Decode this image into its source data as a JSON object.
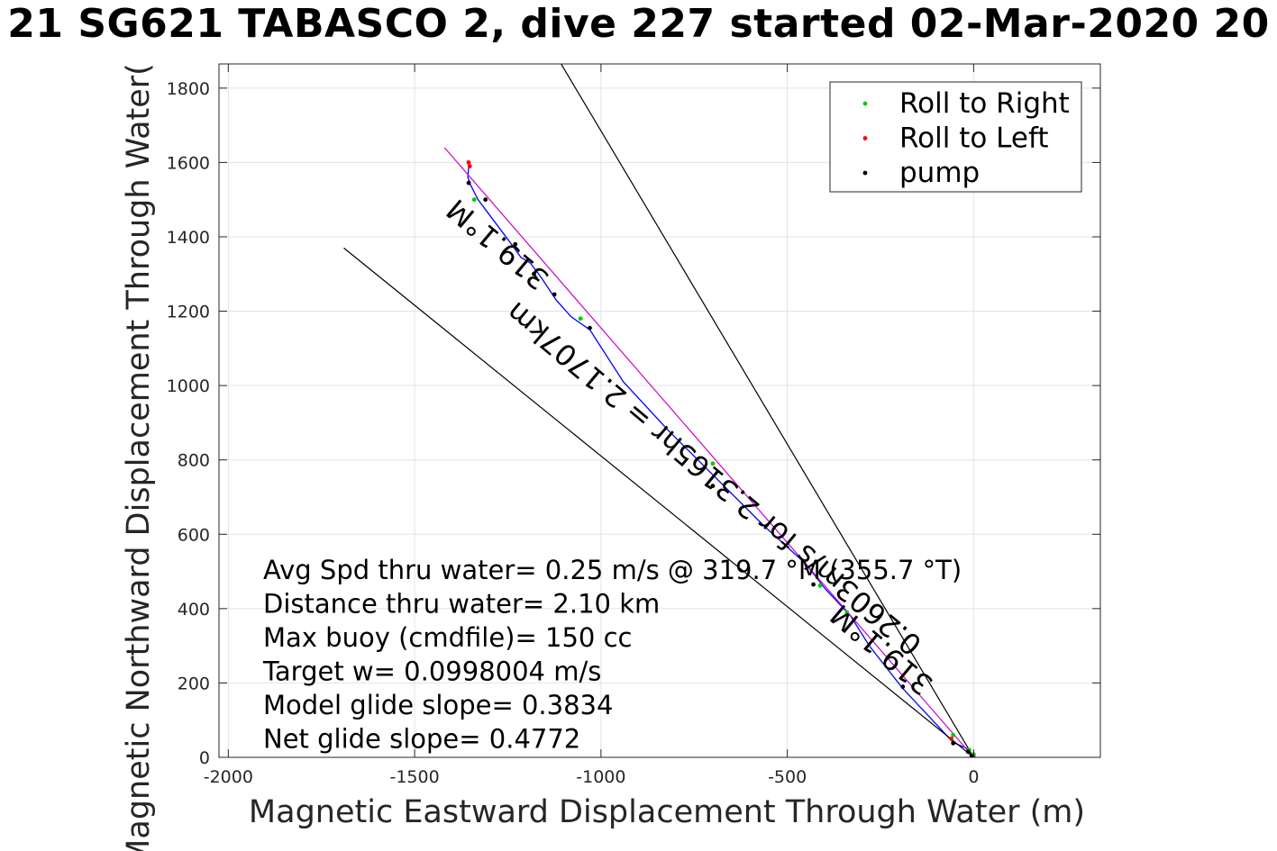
{
  "title": "21 SG621 TABASCO 2, dive 227 started 02-Mar-2020 20",
  "chart_data": {
    "type": "line",
    "title": "21 SG621 TABASCO 2, dive 227 started 02-Mar-2020 20",
    "xlabel": "Magnetic Eastward Displacement Through Water (m)",
    "ylabel": "Magnetic Northward Displacement Through Water(",
    "xlim": [
      -2025,
      340
    ],
    "ylim": [
      0,
      1865
    ],
    "grid": true,
    "x_ticks": [
      -2000,
      -1500,
      -1000,
      -500,
      0
    ],
    "x_tick_labels": [
      "-2000",
      "-1500",
      "-1000",
      "-500",
      "0"
    ],
    "y_ticks": [
      0,
      200,
      400,
      600,
      800,
      1000,
      1200,
      1400,
      1600,
      1800
    ],
    "y_tick_labels": [
      "0",
      "200",
      "400",
      "600",
      "800",
      "1000",
      "1200",
      "1400",
      "1600",
      "1800"
    ],
    "legend": {
      "position": "top-right",
      "entries": [
        {
          "label": "Roll to Right",
          "color": "#00cc00"
        },
        {
          "label": "Roll to Left",
          "color": "#ff0000"
        },
        {
          "label": "pump",
          "color": "#000000"
        }
      ]
    },
    "series": [
      {
        "name": "Roll to Right",
        "color": "#00cc00",
        "marker": "dot",
        "points": [
          [
            0,
            8
          ],
          [
            -12,
            20
          ],
          [
            -55,
            60
          ],
          [
            -340,
            390
          ],
          [
            -412,
            462
          ],
          [
            -700,
            790
          ],
          [
            -1055,
            1180
          ],
          [
            -1175,
            1290
          ],
          [
            -1340,
            1500
          ]
        ]
      },
      {
        "name": "Roll to Left",
        "color": "#ff0000",
        "marker": "dot",
        "points": [
          [
            0,
            0
          ],
          [
            -60,
            50
          ],
          [
            -1355,
            1600
          ],
          [
            -1352,
            1590
          ]
        ]
      },
      {
        "name": "pump",
        "color": "#000000",
        "marker": "dot",
        "points": [
          [
            -5,
            3
          ],
          [
            -15,
            15
          ],
          [
            -55,
            38
          ],
          [
            -190,
            190
          ],
          [
            -430,
            465
          ],
          [
            -700,
            730
          ],
          [
            -1030,
            1155
          ],
          [
            -1125,
            1245
          ],
          [
            -1180,
            1300
          ],
          [
            -1230,
            1380
          ],
          [
            -1310,
            1500
          ],
          [
            -1355,
            1545
          ]
        ]
      },
      {
        "name": "track",
        "color": "#0000ff",
        "style": "line",
        "points": [
          [
            0,
            0
          ],
          [
            -20,
            25
          ],
          [
            -55,
            40
          ],
          [
            -120,
            110
          ],
          [
            -190,
            185
          ],
          [
            -280,
            300
          ],
          [
            -330,
            380
          ],
          [
            -400,
            455
          ],
          [
            -450,
            520
          ],
          [
            -560,
            620
          ],
          [
            -700,
            760
          ],
          [
            -820,
            880
          ],
          [
            -940,
            1010
          ],
          [
            -1030,
            1150
          ],
          [
            -1080,
            1185
          ],
          [
            -1120,
            1230
          ],
          [
            -1160,
            1290
          ],
          [
            -1190,
            1330
          ],
          [
            -1215,
            1345
          ],
          [
            -1240,
            1380
          ],
          [
            -1270,
            1420
          ],
          [
            -1300,
            1460
          ],
          [
            -1330,
            1500
          ],
          [
            -1350,
            1540
          ],
          [
            -1357,
            1560
          ],
          [
            -1355,
            1590
          ]
        ]
      },
      {
        "name": "course",
        "color": "#cc00cc",
        "style": "line",
        "points": [
          [
            0,
            0
          ],
          [
            -1420,
            1640
          ]
        ]
      },
      {
        "name": "wedge-left",
        "color": "#000000",
        "style": "line",
        "points": [
          [
            0,
            0
          ],
          [
            -1690,
            1370
          ]
        ]
      },
      {
        "name": "wedge-right",
        "color": "#000000",
        "style": "line",
        "points": [
          [
            0,
            0
          ],
          [
            -1110,
            1870
          ]
        ]
      }
    ],
    "rotated_labels": [
      {
        "text": "319.1°M",
        "at": [
          -1260,
          1400
        ],
        "rotation": 220
      },
      {
        "text": "0.2603m/s for 2.3165hr = 2.1707km",
        "at": [
          -680,
          770
        ],
        "rotation": 220
      },
      {
        "text": "319.1°M",
        "at": [
          -230,
          310
        ],
        "rotation": 220
      }
    ],
    "annotations": [
      "Avg Spd thru water=  0.25 m/s @ 319.7 °M (355.7 °T)",
      "Distance thru water=  2.10 km",
      "Max buoy (cmdfile)= 150 cc",
      "Target w= 0.0998004 m/s",
      "Model glide slope= 0.3834",
      "Net glide slope= 0.4772"
    ]
  }
}
